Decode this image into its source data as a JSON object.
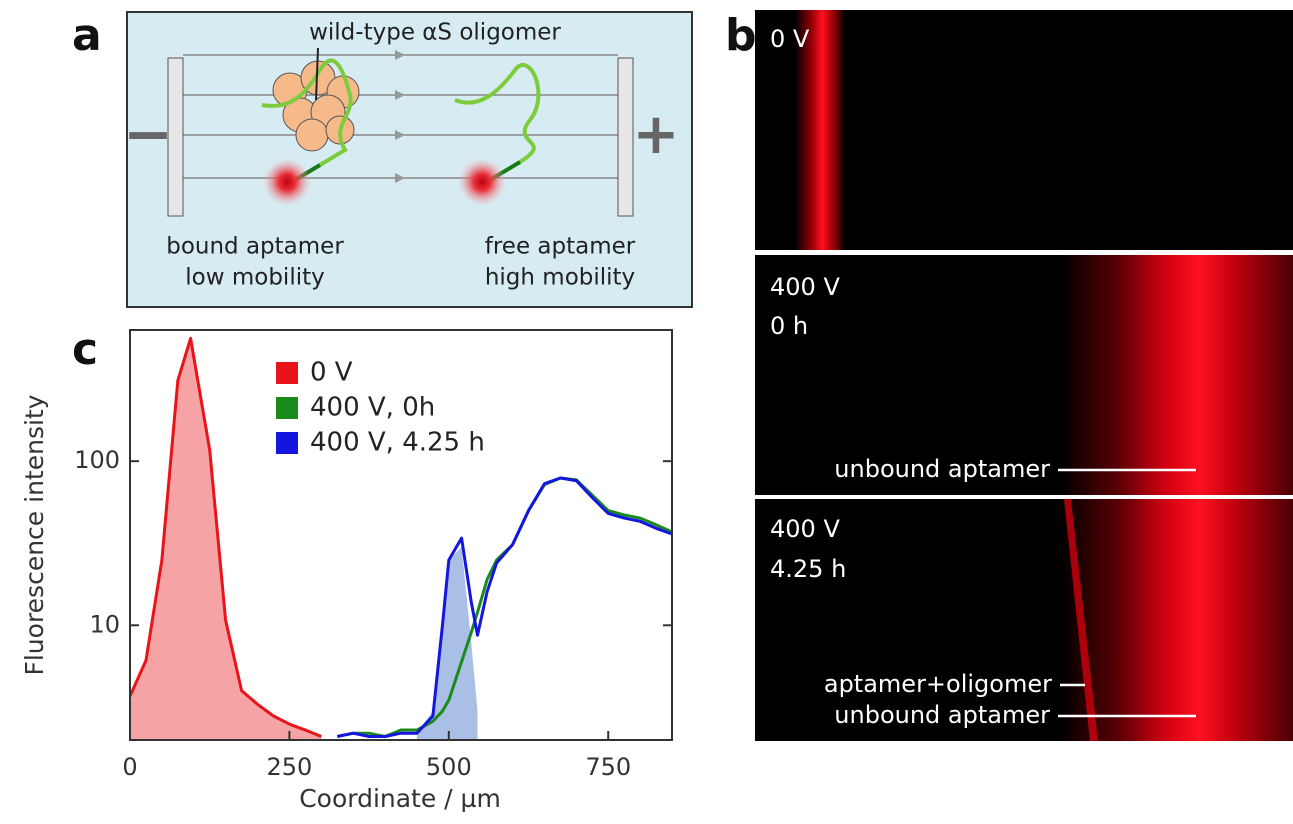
{
  "panel_a": {
    "label": "a",
    "oligomer_label": "wild-type αS oligomer",
    "minus": "−",
    "plus": "+",
    "bound": [
      "bound aptamer",
      "low mobility"
    ],
    "free": [
      "free aptamer",
      "high mobility"
    ]
  },
  "panel_b": {
    "label": "b",
    "frames": [
      {
        "labels": [
          "0 V"
        ]
      },
      {
        "labels": [
          "400 V",
          "0 h"
        ],
        "annotations": [
          "unbound aptamer"
        ]
      },
      {
        "labels": [
          "400 V",
          "4.25 h"
        ],
        "annotations": [
          "aptamer+oligomer",
          "unbound aptamer"
        ]
      }
    ]
  },
  "chart_data": {
    "type": "line",
    "label": "c",
    "x_label": "Coordinate / µm",
    "y_label": "Fluorescence intensity",
    "log_y": true,
    "xlim": [
      0,
      850
    ],
    "ylim": [
      2,
      630
    ],
    "xticks": [
      0,
      250,
      500,
      750
    ],
    "yticks": [
      10,
      100
    ],
    "x": [
      0,
      25,
      50,
      75,
      95,
      125,
      150,
      175,
      200,
      225,
      250,
      275,
      300,
      325,
      350,
      375,
      400,
      425,
      450,
      475,
      490,
      500,
      520,
      535,
      545,
      560,
      575,
      600,
      625,
      650,
      675,
      700,
      725,
      750,
      775,
      800,
      825,
      850
    ],
    "series": [
      {
        "name": "0 V",
        "color": "#e8141a",
        "fill": true,
        "fill_color": "#f5a3a5",
        "values": [
          3.7,
          6.1,
          25,
          310,
          560,
          117,
          10.7,
          4,
          3.3,
          2.8,
          2.5,
          2.3,
          2.1,
          null,
          null,
          null,
          null,
          null,
          null,
          null,
          null,
          null,
          null,
          null,
          null,
          null,
          null,
          null,
          null,
          null,
          null,
          null,
          null,
          null,
          null,
          null,
          null,
          null
        ]
      },
      {
        "name": "400 V, 0h",
        "color": "#1a8a1a",
        "values": [
          null,
          null,
          null,
          null,
          null,
          null,
          null,
          null,
          null,
          null,
          null,
          null,
          null,
          2.1,
          2.2,
          2.2,
          2.1,
          2.3,
          2.3,
          2.6,
          3.0,
          3.5,
          6,
          9,
          12,
          19,
          25,
          31,
          50,
          72,
          79,
          77,
          62,
          50,
          47,
          45,
          41,
          37
        ]
      },
      {
        "name": "400 V, 4.25 h",
        "color": "#1515e0",
        "values": [
          null,
          null,
          null,
          null,
          null,
          null,
          null,
          null,
          null,
          null,
          null,
          null,
          null,
          2.1,
          2.2,
          2.1,
          2.1,
          2.2,
          2.2,
          2.8,
          10,
          25,
          34,
          14,
          8.7,
          16,
          24,
          31,
          50,
          73,
          79,
          76,
          60,
          48,
          45,
          43,
          39,
          36
        ]
      },
      {
        "color": "#a9bfe6",
        "fill": true,
        "fill_color": "#a9bfe6",
        "line": false,
        "values": [
          null,
          null,
          null,
          null,
          null,
          null,
          null,
          null,
          null,
          null,
          null,
          null,
          null,
          null,
          null,
          null,
          null,
          null,
          2.2,
          3,
          12,
          25,
          30,
          8,
          3,
          null,
          null,
          null,
          null,
          null,
          null,
          null,
          null,
          null,
          null,
          null,
          null,
          null
        ]
      }
    ]
  }
}
